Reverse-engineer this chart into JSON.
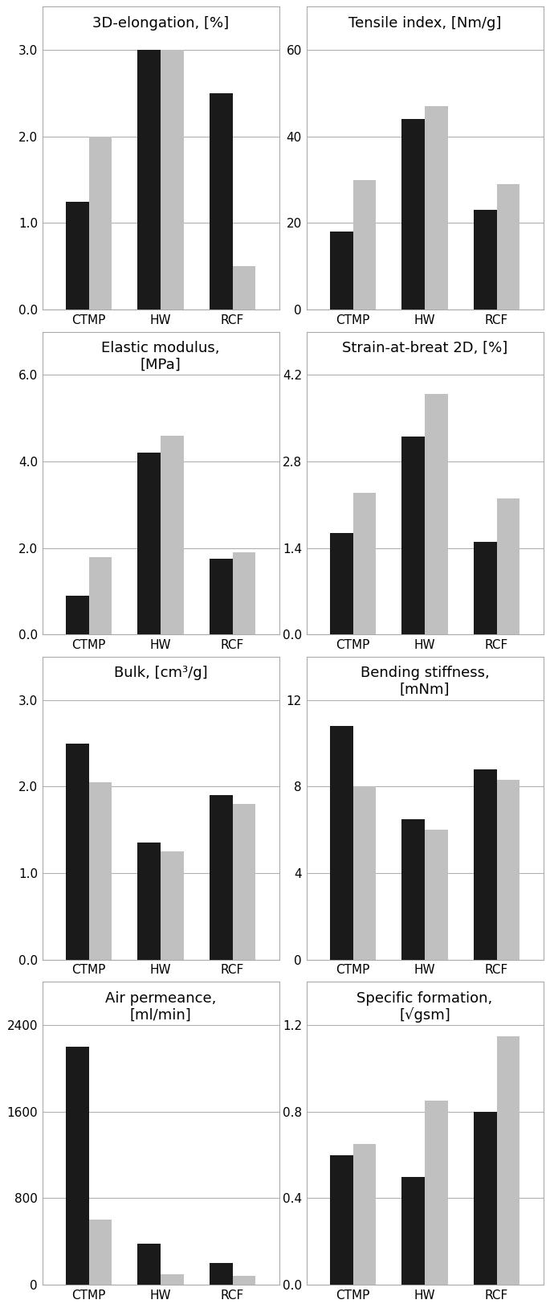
{
  "plots": [
    {
      "title": "3D-elongation, [%]",
      "categories": [
        "CTMP",
        "HW",
        "RCF"
      ],
      "black_values": [
        1.25,
        3.0,
        2.5
      ],
      "gray_values": [
        2.0,
        3.0,
        0.5
      ],
      "ylim": [
        0,
        3.5
      ],
      "yticks": [
        0.0,
        1.0,
        2.0,
        3.0
      ],
      "ytick_labels": [
        "0.0",
        "1.0",
        "2.0",
        "3.0"
      ]
    },
    {
      "title": "Tensile index, [Nm/g]",
      "categories": [
        "CTMP",
        "HW",
        "RCF"
      ],
      "black_values": [
        18,
        44,
        23
      ],
      "gray_values": [
        30,
        47,
        29
      ],
      "ylim": [
        0,
        70
      ],
      "yticks": [
        0,
        20,
        40,
        60
      ],
      "ytick_labels": [
        "0",
        "20",
        "40",
        "60"
      ]
    },
    {
      "title": "Elastic modulus,\n[MPa]",
      "categories": [
        "CTMP",
        "HW",
        "RCF"
      ],
      "black_values": [
        0.9,
        4.2,
        1.75
      ],
      "gray_values": [
        1.8,
        4.6,
        1.9
      ],
      "ylim": [
        0,
        7.0
      ],
      "yticks": [
        0.0,
        2.0,
        4.0,
        6.0
      ],
      "ytick_labels": [
        "0.0",
        "2.0",
        "4.0",
        "6.0"
      ]
    },
    {
      "title": "Strain-at-breat 2D, [%]",
      "categories": [
        "CTMP",
        "HW",
        "RCF"
      ],
      "black_values": [
        1.65,
        3.2,
        1.5
      ],
      "gray_values": [
        2.3,
        3.9,
        2.2
      ],
      "ylim": [
        0,
        4.9
      ],
      "yticks": [
        0.0,
        1.4,
        2.8,
        4.2
      ],
      "ytick_labels": [
        "0.0",
        "1.4",
        "2.8",
        "4.2"
      ]
    },
    {
      "title": "Bulk, [cm³/g]",
      "categories": [
        "CTMP",
        "HW",
        "RCF"
      ],
      "black_values": [
        2.5,
        1.35,
        1.9
      ],
      "gray_values": [
        2.05,
        1.25,
        1.8
      ],
      "ylim": [
        0,
        3.5
      ],
      "yticks": [
        0.0,
        1.0,
        2.0,
        3.0
      ],
      "ytick_labels": [
        "0.0",
        "1.0",
        "2.0",
        "3.0"
      ]
    },
    {
      "title": "Bending stiffness,\n[mNm]",
      "categories": [
        "CTMP",
        "HW",
        "RCF"
      ],
      "black_values": [
        10.8,
        6.5,
        8.8
      ],
      "gray_values": [
        8.0,
        6.0,
        8.3
      ],
      "ylim": [
        0,
        14
      ],
      "yticks": [
        0,
        4,
        8,
        12
      ],
      "ytick_labels": [
        "0",
        "4",
        "8",
        "12"
      ]
    },
    {
      "title": "Air permeance,\n[ml/min]",
      "categories": [
        "CTMP",
        "HW",
        "RCF"
      ],
      "black_values": [
        2200,
        380,
        200
      ],
      "gray_values": [
        600,
        100,
        80
      ],
      "ylim": [
        0,
        2800
      ],
      "yticks": [
        0,
        800,
        1600,
        2400
      ],
      "ytick_labels": [
        "0",
        "800",
        "1600",
        "2400"
      ]
    },
    {
      "title": "Specific formation,\n[√gsm]",
      "categories": [
        "CTMP",
        "HW",
        "RCF"
      ],
      "black_values": [
        0.6,
        0.5,
        0.8
      ],
      "gray_values": [
        0.65,
        0.85,
        1.15
      ],
      "ylim": [
        0,
        1.4
      ],
      "yticks": [
        0.0,
        0.4,
        0.8,
        1.2
      ],
      "ytick_labels": [
        "0.0",
        "0.4",
        "0.8",
        "1.2"
      ]
    }
  ],
  "black_color": "#1a1a1a",
  "gray_color": "#c0c0c0",
  "bar_width": 0.32,
  "background_color": "#ffffff",
  "grid_color": "#b0b0b0",
  "spine_color": "#aaaaaa",
  "title_fontsize": 13,
  "tick_fontsize": 11
}
